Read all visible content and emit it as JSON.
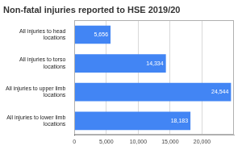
{
  "chart_data": {
    "type": "bar",
    "orientation": "horizontal",
    "title": "Non-fatal injuries reported to HSE 2019/20",
    "categories": [
      "All injuries to head locations",
      "All injuries to torso locations",
      "All injuries to upper limb locations",
      "All injuries to lower limb locations"
    ],
    "values": [
      5656,
      14334,
      24544,
      18183
    ],
    "value_labels": [
      "5,656",
      "14,334",
      "24,544",
      "18,183"
    ],
    "data_labels": true,
    "color": "#4285f4",
    "xlim": [
      0,
      25000
    ],
    "xticks": [
      0,
      {
        "value": 5000,
        "label": "5,000"
      },
      {
        "value": 10000,
        "label": "10,000"
      },
      {
        "value": 15000,
        "label": "15,000"
      },
      {
        "value": 20000,
        "label": "20,000"
      }
    ],
    "grid": true
  }
}
